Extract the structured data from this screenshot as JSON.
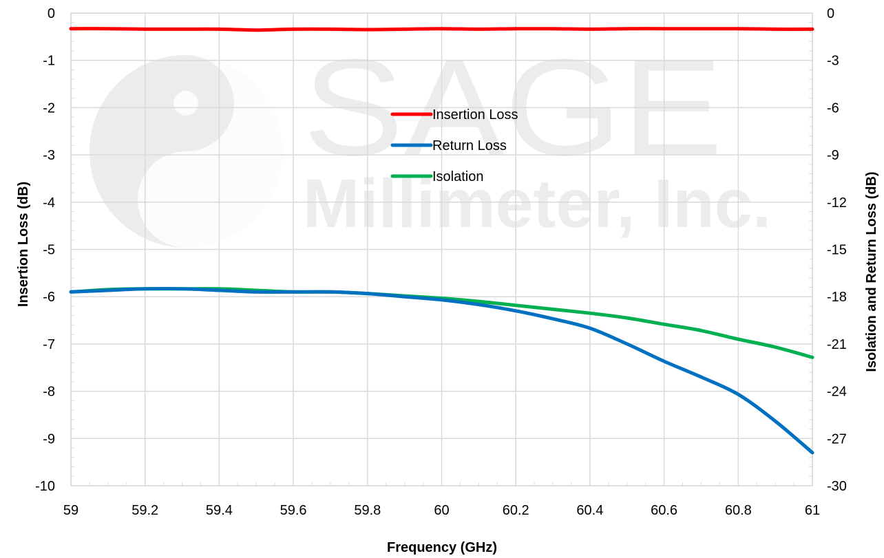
{
  "watermark": {
    "text_line1": "SAGE",
    "text_line2": "Millimeter, Inc."
  },
  "chart_data": {
    "type": "line",
    "xlabel": "Frequency (GHz)",
    "ylabel_left": "Insertion Loss (dB)",
    "ylabel_right": "Isolation and Return Loss (dB)",
    "xlim": [
      59,
      61
    ],
    "ylim_left": [
      -10,
      0
    ],
    "ylim_right": [
      -30,
      0
    ],
    "x_ticks": [
      "59",
      "59.2",
      "59.4",
      "59.6",
      "59.8",
      "60",
      "60.2",
      "60.4",
      "60.6",
      "60.8",
      "61"
    ],
    "y_left_ticks": [
      "0",
      "-1",
      "-2",
      "-3",
      "-4",
      "-5",
      "-6",
      "-7",
      "-8",
      "-9",
      "-10"
    ],
    "y_right_ticks": [
      "0",
      "-3",
      "-6",
      "-9",
      "-12",
      "-15",
      "-18",
      "-21",
      "-24",
      "-27",
      "-30"
    ],
    "grid": true,
    "legend_position": "upper-center",
    "series": [
      {
        "name": "Insertion Loss",
        "axis": "left",
        "color": "#ff0000",
        "x": [
          59,
          59.1,
          59.2,
          59.3,
          59.4,
          59.5,
          59.6,
          59.7,
          59.8,
          59.9,
          60,
          60.1,
          60.2,
          60.3,
          60.4,
          60.5,
          60.6,
          60.7,
          60.8,
          60.9,
          61
        ],
        "y": [
          -0.33,
          -0.33,
          -0.34,
          -0.34,
          -0.34,
          -0.36,
          -0.34,
          -0.34,
          -0.35,
          -0.34,
          -0.33,
          -0.34,
          -0.33,
          -0.33,
          -0.34,
          -0.33,
          -0.33,
          -0.33,
          -0.33,
          -0.34,
          -0.34
        ]
      },
      {
        "name": "Return Loss",
        "axis": "right",
        "color": "#0070c0",
        "x": [
          59,
          59.1,
          59.2,
          59.3,
          59.4,
          59.5,
          59.6,
          59.7,
          59.8,
          59.9,
          60,
          60.1,
          60.2,
          60.3,
          60.4,
          60.5,
          60.6,
          60.7,
          60.8,
          60.9,
          61
        ],
        "y": [
          -17.7,
          -17.6,
          -17.5,
          -17.5,
          -17.6,
          -17.7,
          -17.7,
          -17.7,
          -17.8,
          -18.0,
          -18.2,
          -18.5,
          -18.9,
          -19.4,
          -20.0,
          -21.0,
          -22.1,
          -23.1,
          -24.2,
          -25.9,
          -27.9
        ]
      },
      {
        "name": "Isolation",
        "axis": "right",
        "color": "#00b050",
        "x": [
          59,
          59.1,
          59.2,
          59.3,
          59.4,
          59.5,
          59.6,
          59.7,
          59.8,
          59.9,
          60,
          60.1,
          60.2,
          60.3,
          60.4,
          60.5,
          60.6,
          60.7,
          60.8,
          60.9,
          61
        ],
        "y": [
          -17.7,
          -17.55,
          -17.5,
          -17.5,
          -17.5,
          -17.6,
          -17.7,
          -17.7,
          -17.8,
          -17.95,
          -18.1,
          -18.3,
          -18.55,
          -18.8,
          -19.05,
          -19.35,
          -19.75,
          -20.15,
          -20.7,
          -21.2,
          -21.85
        ]
      }
    ]
  }
}
